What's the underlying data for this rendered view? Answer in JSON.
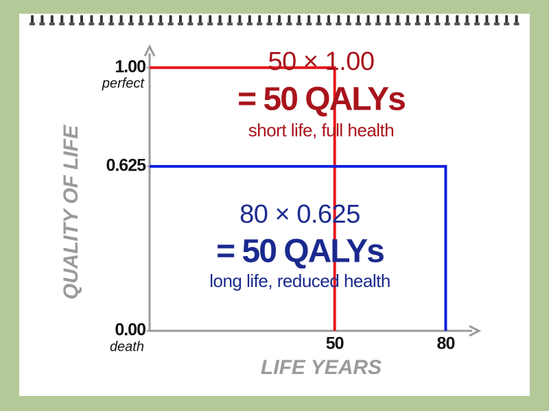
{
  "chart_data": {
    "type": "rectangle",
    "x_label": "LIFE YEARS",
    "y_label": "QUALITY OF LIFE",
    "xlim": [
      0,
      89
    ],
    "ylim": [
      0,
      1.08
    ],
    "xticks": [
      50,
      80
    ],
    "yticks": [
      {
        "value": 0,
        "label": "0.00"
      },
      0.625,
      {
        "value": 1,
        "label": "1.00"
      }
    ],
    "ytick_notes": [
      {
        "value": 0,
        "label": "death"
      },
      {
        "value": 1,
        "label": "perfect"
      }
    ],
    "axis_color": "#9a9a9a",
    "series": [
      {
        "color": "#e8141c",
        "text_color": "#a8141c",
        "x": 50,
        "y": 1,
        "annotations": [
          "50 × 1.00",
          "= 50 QALYs",
          "short life, full health"
        ]
      },
      {
        "color": "#1020e0",
        "text_color": "#1a2a8e",
        "x": 80,
        "y": 0.625,
        "annotations": [
          "80 × 0.625",
          "= 50 QALYs",
          "long life, reduced health"
        ]
      }
    ]
  }
}
